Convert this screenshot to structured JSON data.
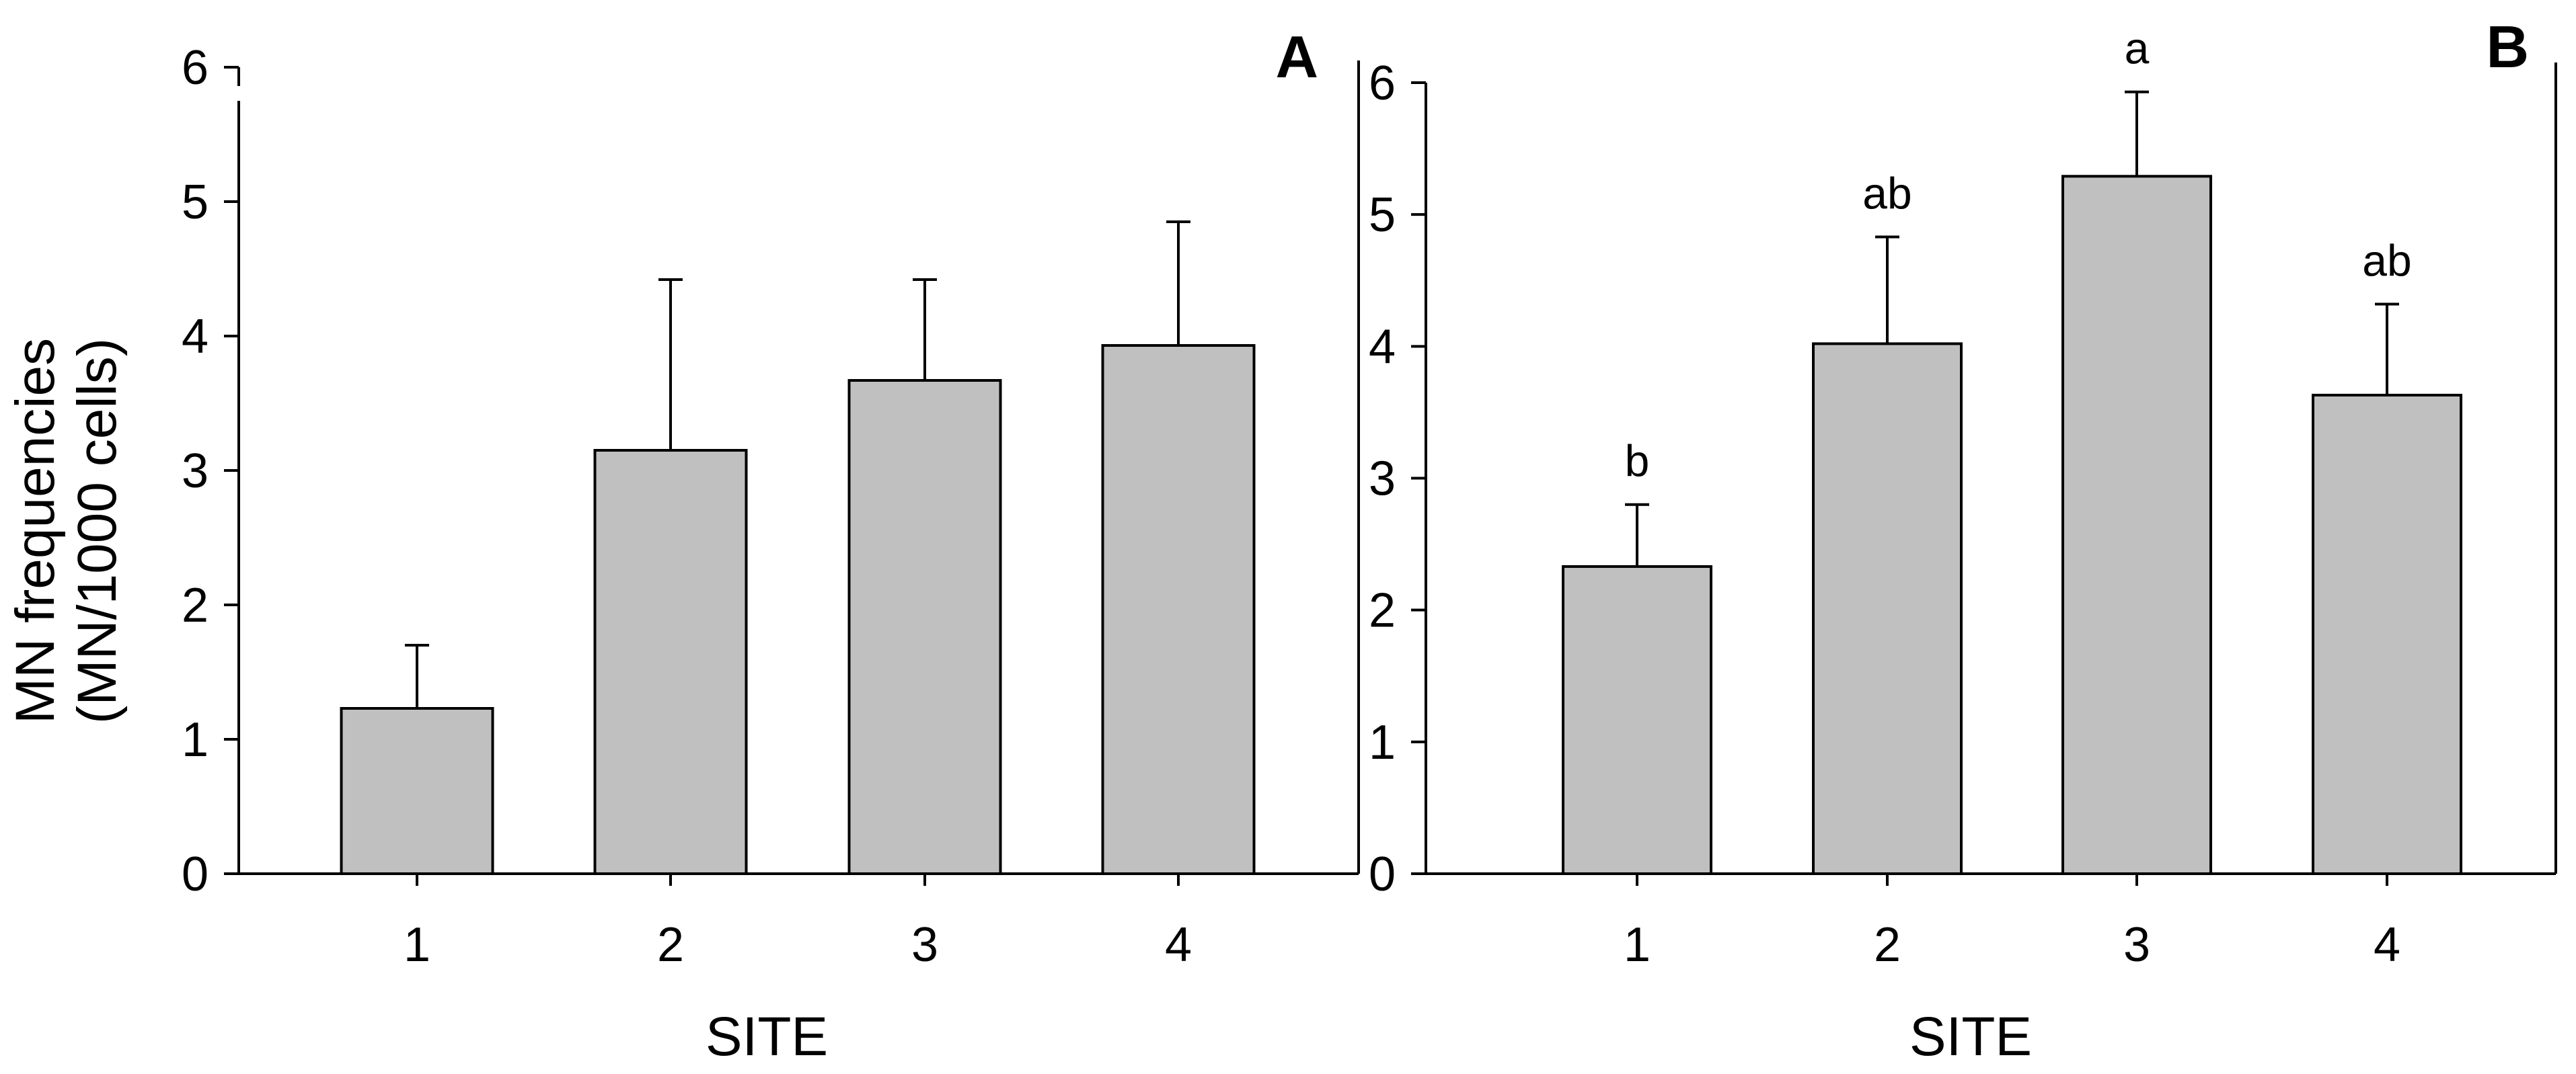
{
  "figure": {
    "ylabel_line1": "MN frequencies",
    "ylabel_line2": "(MN/1000 cells)"
  },
  "colors": {
    "bar_fill": "#c0c0c0",
    "bar_stroke": "#000000",
    "axis": "#000000"
  },
  "chart_data": [
    {
      "type": "bar",
      "panel_label": "A",
      "xlabel": "SITE",
      "ylabel": "MN frequencies (MN/1000 cells)",
      "categories": [
        "1",
        "2",
        "3",
        "4"
      ],
      "values": [
        1.23,
        3.15,
        3.67,
        3.93
      ],
      "error_upper": [
        1.7,
        4.42,
        4.42,
        4.85
      ],
      "significance_labels": [],
      "ylim": [
        0,
        6
      ],
      "yticks": [
        0,
        1,
        2,
        3,
        4,
        5,
        6
      ],
      "grid": false,
      "legend": "none"
    },
    {
      "type": "bar",
      "panel_label": "B",
      "xlabel": "SITE",
      "ylabel": "",
      "categories": [
        "1",
        "2",
        "3",
        "4"
      ],
      "values": [
        2.33,
        4.02,
        5.29,
        3.63
      ],
      "error_upper": [
        2.8,
        4.83,
        5.93,
        4.32
      ],
      "significance_labels": [
        "b",
        "ab",
        "a",
        "ab"
      ],
      "ylim": [
        0,
        6
      ],
      "yticks": [
        0,
        1,
        2,
        3,
        4,
        5,
        6
      ],
      "grid": false,
      "legend": "none"
    }
  ]
}
